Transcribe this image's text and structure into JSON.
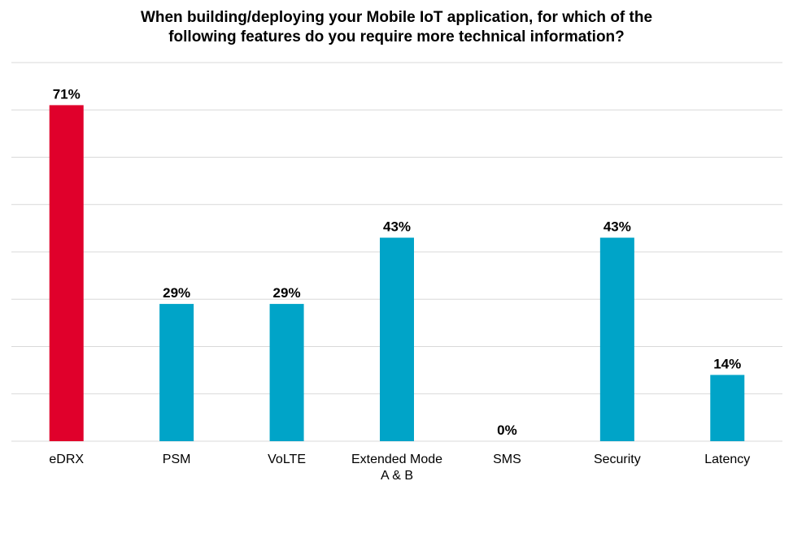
{
  "chart_data": {
    "type": "bar",
    "title_lines": [
      "When building/deploying your Mobile IoT application, for which of the",
      "following features do you require more technical information?"
    ],
    "categories": [
      [
        "eDRX"
      ],
      [
        "PSM"
      ],
      [
        "VoLTE"
      ],
      [
        "Extended Mode",
        "A & B"
      ],
      [
        "SMS"
      ],
      [
        "Security"
      ],
      [
        "Latency"
      ]
    ],
    "values": [
      71,
      29,
      29,
      43,
      0,
      43,
      14
    ],
    "data_labels": [
      "71%",
      "29%",
      "29%",
      "43%",
      "0%",
      "43%",
      "14%"
    ],
    "colors": [
      "#E0002B",
      "#00A4C8",
      "#00A4C8",
      "#00A4C8",
      "#00A4C8",
      "#00A4C8",
      "#00A4C8"
    ],
    "ylim": [
      0,
      80
    ],
    "grid_step": 10,
    "grid": true,
    "xlabel": "",
    "ylabel": "",
    "legend": "none"
  }
}
